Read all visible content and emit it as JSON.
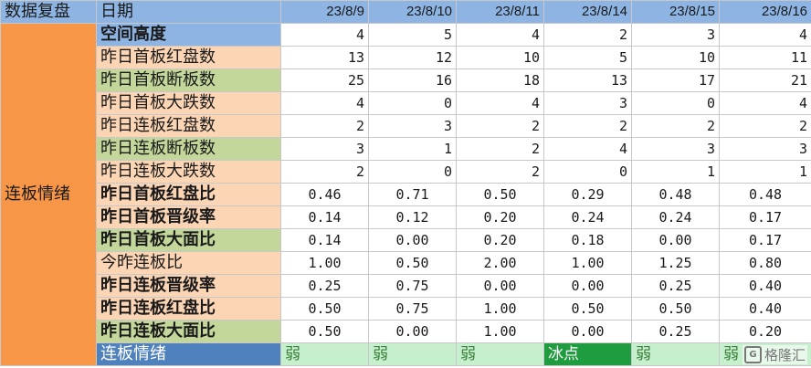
{
  "header": {
    "corner": "数据复盘",
    "date_label": "日期",
    "dates": [
      "23/8/9",
      "23/8/10",
      "23/8/11",
      "23/8/14",
      "23/8/15",
      "23/8/16"
    ]
  },
  "side_label": "连板情绪",
  "colors": {
    "header_blue": "#8db4e2",
    "peach": "#fcd5b4",
    "green": "#c4d79b",
    "orange": "#f79646",
    "light_green": "#c6efce",
    "dark_green": "#1f9c3f",
    "last_label_blue": "#4f81bd"
  },
  "rows": [
    {
      "label": "空间高度",
      "bg": "#8db4e2",
      "bold": true,
      "values": [
        "4",
        "5",
        "4",
        "2",
        "3",
        "4"
      ],
      "kind": "num"
    },
    {
      "label": "昨日首板红盘数",
      "bg": "#fcd5b4",
      "bold": false,
      "values": [
        "13",
        "12",
        "10",
        "5",
        "10",
        "11"
      ],
      "kind": "num"
    },
    {
      "label": "昨日首板断板数",
      "bg": "#c4d79b",
      "bold": false,
      "values": [
        "25",
        "16",
        "18",
        "13",
        "17",
        "21"
      ],
      "kind": "num"
    },
    {
      "label": "昨日首板大跌数",
      "bg": "#fcd5b4",
      "bold": false,
      "values": [
        "4",
        "0",
        "4",
        "3",
        "0",
        "4"
      ],
      "kind": "num"
    },
    {
      "label": "昨日连板红盘数",
      "bg": "#fcd5b4",
      "bold": false,
      "values": [
        "2",
        "3",
        "2",
        "2",
        "2",
        "2"
      ],
      "kind": "num"
    },
    {
      "label": "昨日连板断板数",
      "bg": "#c4d79b",
      "bold": false,
      "values": [
        "3",
        "1",
        "2",
        "4",
        "3",
        "3"
      ],
      "kind": "num"
    },
    {
      "label": "昨日连板大跌数",
      "bg": "#fcd5b4",
      "bold": false,
      "values": [
        "2",
        "0",
        "2",
        "0",
        "1",
        "1"
      ],
      "kind": "num"
    },
    {
      "label": "昨日首板红盘比",
      "bg": "#fcd5b4",
      "bold": true,
      "values": [
        "0.46",
        "0.71",
        "0.50",
        "0.29",
        "0.48",
        "0.48"
      ],
      "kind": "ratio"
    },
    {
      "label": "昨日首板晋级率",
      "bg": "#fcd5b4",
      "bold": true,
      "values": [
        "0.14",
        "0.12",
        "0.20",
        "0.24",
        "0.24",
        "0.17"
      ],
      "kind": "ratio"
    },
    {
      "label": "昨日首板大面比",
      "bg": "#c4d79b",
      "bold": true,
      "values": [
        "0.14",
        "0.00",
        "0.20",
        "0.18",
        "0.00",
        "0.17"
      ],
      "kind": "ratio"
    },
    {
      "label": "今昨连板比",
      "bg": "#fcd5b4",
      "bold": false,
      "values": [
        "1.00",
        "0.50",
        "2.00",
        "1.00",
        "1.25",
        "0.80"
      ],
      "kind": "ratio"
    },
    {
      "label": "昨日连板晋级率",
      "bg": "#fcd5b4",
      "bold": true,
      "values": [
        "0.25",
        "0.75",
        "0.00",
        "0.00",
        "0.25",
        "0.40"
      ],
      "kind": "ratio"
    },
    {
      "label": "昨日连板红盘比",
      "bg": "#fcd5b4",
      "bold": true,
      "values": [
        "0.50",
        "0.75",
        "1.00",
        "0.50",
        "0.50",
        "0.40"
      ],
      "kind": "ratio"
    },
    {
      "label": "昨日连板大面比",
      "bg": "#c4d79b",
      "bold": true,
      "values": [
        "0.50",
        "0.00",
        "1.00",
        "0.00",
        "0.25",
        "0.20"
      ],
      "kind": "ratio"
    }
  ],
  "sentiment_row": {
    "label": "连板情绪",
    "values": [
      "弱",
      "弱",
      "弱",
      "冰点",
      "弱",
      "弱"
    ],
    "highlight": [
      false,
      false,
      false,
      true,
      false,
      false
    ]
  },
  "watermark": {
    "icon": "G",
    "text": "格隆汇"
  }
}
